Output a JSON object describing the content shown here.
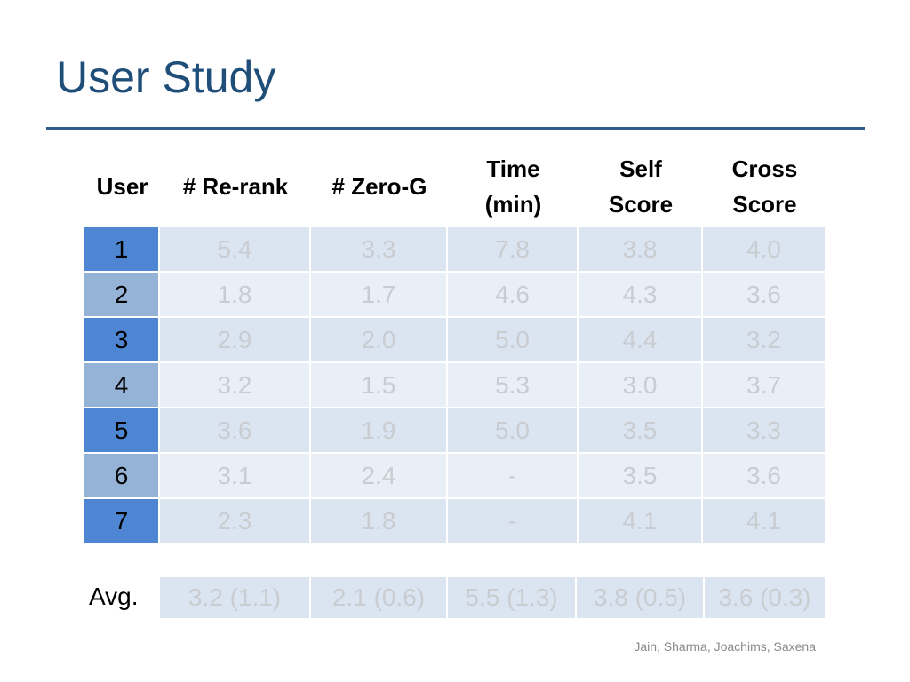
{
  "slide": {
    "title": "User Study",
    "footer": "Jain, Sharma, Joachims, Saxena"
  },
  "table": {
    "headers": [
      "User",
      "# Re-rank",
      "# Zero-G",
      "Time\n(min)",
      "Self\nScore",
      "Cross\nScore"
    ],
    "rows": [
      [
        "1",
        "5.4",
        "3.3",
        "7.8",
        "3.8",
        "4.0"
      ],
      [
        "2",
        "1.8",
        "1.7",
        "4.6",
        "4.3",
        "3.6"
      ],
      [
        "3",
        "2.9",
        "2.0",
        "5.0",
        "4.4",
        "3.2"
      ],
      [
        "4",
        "3.2",
        "1.5",
        "5.3",
        "3.0",
        "3.7"
      ],
      [
        "5",
        "3.6",
        "1.9",
        "5.0",
        "3.5",
        "3.3"
      ],
      [
        "6",
        "3.1",
        "2.4",
        "-",
        "3.5",
        "3.6"
      ],
      [
        "7",
        "2.3",
        "1.8",
        "-",
        "4.1",
        "4.1"
      ]
    ],
    "avg_label": "Avg.",
    "avg": [
      "3.2 (1.1)",
      "2.1 (0.6)",
      "5.5 (1.3)",
      "3.8 (0.5)",
      "3.6 (0.3)"
    ]
  },
  "colors": {
    "title": "#1f4e79",
    "rule": "#2f5a8a",
    "user_dark": "#4f86d3",
    "user_light": "#95b3d7",
    "cell_dark": "#dbe5f1",
    "cell_light": "#e9eff7",
    "value_text": "#c9cdd2"
  }
}
